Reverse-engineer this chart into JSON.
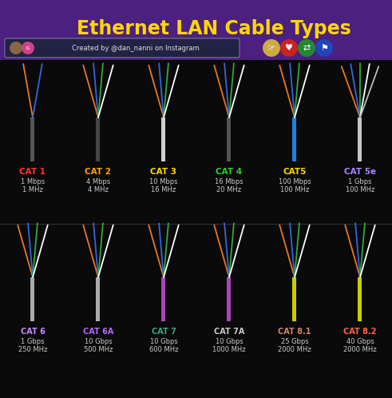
{
  "title": "Ethernet LAN Cable Types",
  "title_color": "#FFD700",
  "bg_color": "#0a0a0a",
  "header_bg": "#4B2080",
  "subtitle": "Created by @dan_nanni on Instagram",
  "cables_row1": [
    {
      "name": "CAT 1",
      "speed": "1 Mbps",
      "freq": "1 MHz",
      "name_color": "#FF3333",
      "jacket_color": "#555555",
      "wires": 2
    },
    {
      "name": "CAT 2",
      "speed": "4 Mbps",
      "freq": "4 MHz",
      "name_color": "#FFA500",
      "jacket_color": "#444444",
      "wires": 4
    },
    {
      "name": "CAT 3",
      "speed": "10 Mbps",
      "freq": "16 MHz",
      "name_color": "#FFD700",
      "jacket_color": "#D8D8D8",
      "wires": 4
    },
    {
      "name": "CAT 4",
      "speed": "16 Mbps",
      "freq": "20 MHz",
      "name_color": "#33CC33",
      "jacket_color": "#555555",
      "wires": 4
    },
    {
      "name": "CAT5",
      "speed": "100 Mbps",
      "freq": "100 MHz",
      "name_color": "#FFD700",
      "jacket_color": "#1E7FE0",
      "wires": 4
    },
    {
      "name": "CAT 5e",
      "speed": "1 Gbps",
      "freq": "100 MHz",
      "name_color": "#AA88FF",
      "jacket_color": "#C8C8C8",
      "wires": 5
    }
  ],
  "cables_row2": [
    {
      "name": "CAT 6",
      "speed": "1 Gbps",
      "freq": "250 MHz",
      "name_color": "#CC88FF",
      "jacket_color": "#AAAAAA",
      "wires": 4
    },
    {
      "name": "CAT 6A",
      "speed": "10 Gbps",
      "freq": "500 MHz",
      "name_color": "#BB66FF",
      "jacket_color": "#AAAAAA",
      "wires": 4
    },
    {
      "name": "CAT 7",
      "speed": "10 Gbps",
      "freq": "600 MHz",
      "name_color": "#33AA88",
      "jacket_color": "#AA44BB",
      "wires": 4
    },
    {
      "name": "CAT 7A",
      "speed": "10 Gbps",
      "freq": "1000 MHz",
      "name_color": "#CCCCCC",
      "jacket_color": "#AA44BB",
      "wires": 4
    },
    {
      "name": "CAT 8.1",
      "speed": "25 Gbps",
      "freq": "2000 MHz",
      "name_color": "#CC8866",
      "jacket_color": "#CCCC00",
      "wires": 4
    },
    {
      "name": "CAT 8.2",
      "speed": "40 Gbps",
      "freq": "2000 MHz",
      "name_color": "#FF6644",
      "jacket_color": "#CCCC00",
      "wires": 4
    }
  ],
  "text_color": "#CCCCCC",
  "wire_colors_4": [
    "#E87820",
    "#3366DD",
    "#33AA33",
    "#FFFFFF"
  ],
  "wire_colors_2": [
    "#E87820",
    "#3366DD"
  ],
  "wire_colors_5": [
    "#E87820",
    "#3366DD",
    "#33AA33",
    "#FFFFFF",
    "#BBBBBB"
  ]
}
